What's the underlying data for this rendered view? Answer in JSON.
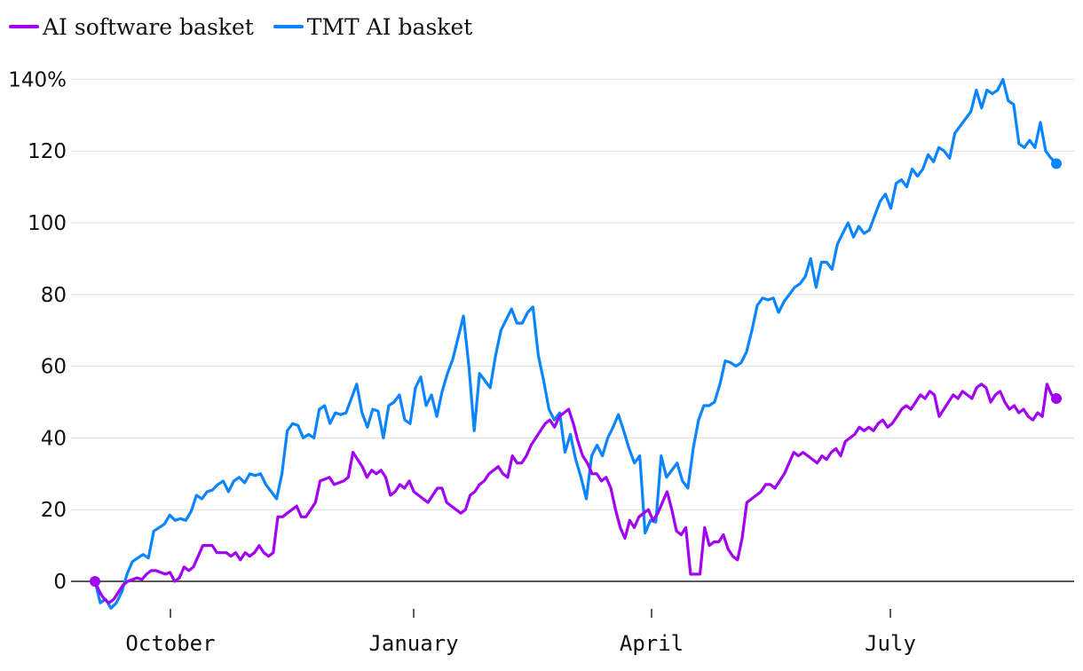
{
  "legend": [
    {
      "label": "AI software basket",
      "color": "#a100f2"
    },
    {
      "label": "TMT AI basket",
      "color": "#0a84ff"
    }
  ],
  "chart_data": {
    "type": "line",
    "y_unit": "%",
    "ylim": [
      -8,
      144
    ],
    "y_ticks": [
      0,
      20,
      40,
      60,
      80,
      100,
      120,
      140
    ],
    "y_tick_labels": [
      "0",
      "20",
      "40",
      "60",
      "80",
      "100",
      "120",
      "140%"
    ],
    "x_ticks": [
      "October",
      "January",
      "April",
      "July"
    ],
    "grid": true,
    "legend_position": "top-left",
    "series": [
      {
        "name": "TMT AI basket",
        "color": "#0a84ff",
        "values": [
          0,
          -6,
          -5,
          -7.5,
          -6,
          -3,
          2,
          5.5,
          6.5,
          7.5,
          6.5,
          14,
          15,
          16,
          18.5,
          17,
          17.5,
          17,
          19.5,
          24,
          23,
          25,
          25.5,
          27,
          28,
          25,
          28,
          29,
          27.5,
          30,
          29.5,
          30,
          27,
          25,
          23,
          30,
          42,
          44,
          43.5,
          40,
          41,
          40,
          48,
          49,
          44,
          47,
          46.5,
          47,
          51,
          55,
          47,
          43,
          48,
          47.5,
          40,
          49,
          50,
          52,
          45,
          44,
          54,
          57,
          49,
          52,
          46,
          53,
          58,
          62,
          68,
          74,
          60,
          42,
          58,
          56,
          54,
          63,
          70,
          73,
          76,
          72,
          72,
          75,
          76.5,
          63,
          56,
          48,
          45,
          47,
          36,
          41,
          34,
          29,
          23,
          35,
          38,
          35,
          40,
          43,
          46.5,
          42,
          37,
          33,
          35,
          13.5,
          17,
          16.5,
          35,
          29,
          31,
          33,
          28,
          26,
          37,
          45,
          49,
          49,
          50,
          55,
          61.5,
          61,
          60,
          61,
          64,
          70,
          77,
          79,
          78.5,
          79,
          75,
          78,
          80,
          82,
          83,
          85,
          90,
          82,
          89,
          89,
          87,
          94,
          97,
          100,
          96,
          99,
          97,
          98,
          102,
          106,
          108,
          104,
          111,
          112,
          110,
          115,
          113,
          115,
          119,
          117,
          121,
          120,
          118,
          125,
          127,
          129,
          131,
          137,
          132,
          137,
          136,
          137,
          140,
          134,
          133,
          122,
          121,
          123,
          121,
          128,
          120,
          118,
          116.5
        ]
      },
      {
        "name": "AI software basket",
        "color": "#a100f2",
        "values": [
          0,
          -3,
          -5,
          -6,
          -5,
          -3,
          -1,
          0,
          0.5,
          1,
          0.5,
          2,
          3,
          3,
          2.5,
          2,
          2.5,
          0,
          1,
          4,
          3,
          4,
          7,
          10,
          10,
          10,
          8,
          8,
          8,
          7,
          8,
          6,
          8,
          7,
          8,
          10,
          8,
          7,
          8,
          18,
          18,
          19,
          20,
          21,
          18,
          18,
          20,
          22,
          28,
          28.5,
          29,
          27,
          27.5,
          28,
          29,
          36,
          34,
          32,
          29,
          31,
          30,
          31,
          29,
          24,
          25,
          27,
          26,
          28,
          25,
          24,
          23,
          22,
          24,
          26,
          26,
          22,
          21,
          20,
          19,
          20,
          24,
          25,
          27,
          28,
          30,
          31,
          32,
          30,
          29,
          35,
          33,
          33,
          35,
          38,
          40,
          42,
          44,
          45,
          43,
          46,
          47,
          48,
          44,
          39,
          35,
          33,
          30,
          30,
          28,
          29,
          26,
          20,
          15,
          12,
          17,
          15,
          18,
          19,
          20,
          17,
          19,
          22,
          25,
          20,
          14,
          13,
          15,
          2,
          2,
          2,
          15,
          10,
          11,
          11,
          13,
          9,
          7,
          6,
          12,
          22,
          23,
          24,
          25,
          27,
          27,
          26,
          28,
          30,
          33,
          36,
          35,
          36,
          35,
          34,
          33,
          35,
          34,
          36,
          37,
          35,
          39,
          40,
          41,
          43,
          42,
          43,
          42,
          44,
          45,
          43,
          44,
          46,
          48,
          49,
          48,
          50,
          52,
          51,
          53,
          52,
          46,
          48,
          50,
          52,
          51,
          53,
          52,
          51,
          54,
          55,
          54,
          50,
          52,
          53,
          50,
          48,
          49,
          47,
          48,
          46,
          45,
          47,
          46,
          55,
          52,
          51
        ]
      }
    ]
  }
}
